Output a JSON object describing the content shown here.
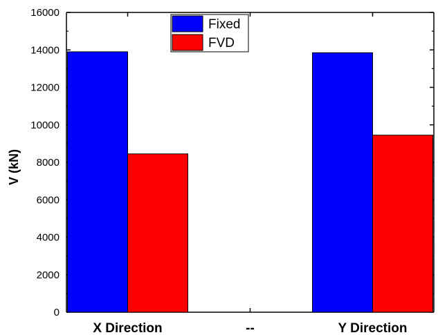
{
  "chart_data": {
    "type": "bar",
    "categories": [
      "X Direction",
      "--",
      "Y Direction"
    ],
    "series": [
      {
        "name": "Fixed",
        "color": "#0000ff",
        "values": [
          13900,
          null,
          13850
        ]
      },
      {
        "name": "FVD",
        "color": "#ff0000",
        "values": [
          8450,
          null,
          9450
        ]
      }
    ],
    "xlabel": "",
    "ylabel": "V (kN)",
    "ylim": [
      0,
      16000
    ],
    "yticks": [
      0,
      2000,
      4000,
      6000,
      8000,
      10000,
      12000,
      14000,
      16000
    ],
    "grid": false,
    "legend": {
      "position": "top-center",
      "entries": [
        "Fixed",
        "FVD"
      ]
    }
  }
}
